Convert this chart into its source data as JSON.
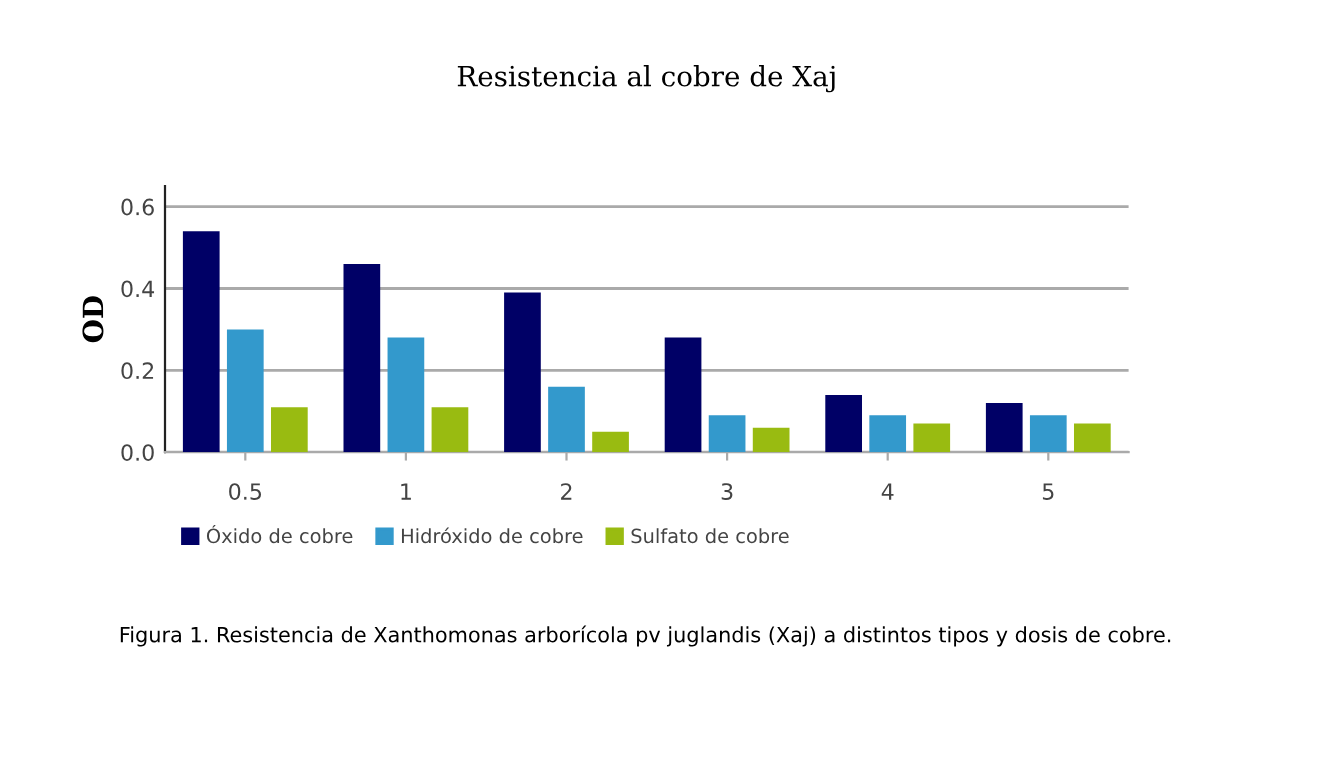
{
  "chart_data": {
    "type": "bar",
    "title": "Resistencia al cobre de Xaj",
    "ylabel": "OD",
    "categories": [
      "0.5",
      "1",
      "2",
      "3",
      "4",
      "5"
    ],
    "series": [
      {
        "name": "Óxido de cobre",
        "color": "#000066",
        "values": [
          0.54,
          0.46,
          0.39,
          0.28,
          0.14,
          0.12
        ]
      },
      {
        "name": "Hidróxido de cobre",
        "color": "#3399cc",
        "values": [
          0.3,
          0.28,
          0.16,
          0.09,
          0.09,
          0.09
        ]
      },
      {
        "name": "Sulfato de cobre",
        "color": "#99bb11",
        "values": [
          0.11,
          0.11,
          0.05,
          0.06,
          0.07,
          0.07
        ]
      }
    ],
    "ylim": [
      0,
      0.65
    ],
    "yticks": [
      {
        "value": 0,
        "label": "0.0"
      },
      0.2,
      0.4,
      0.6
    ],
    "grid": "y",
    "legend": "bottom",
    "annotations": [
      "Figura 1. Resistencia de Xanthomonas arborícola pv juglandis (Xaj) a distintos tipos y dosis de cobre."
    ]
  }
}
